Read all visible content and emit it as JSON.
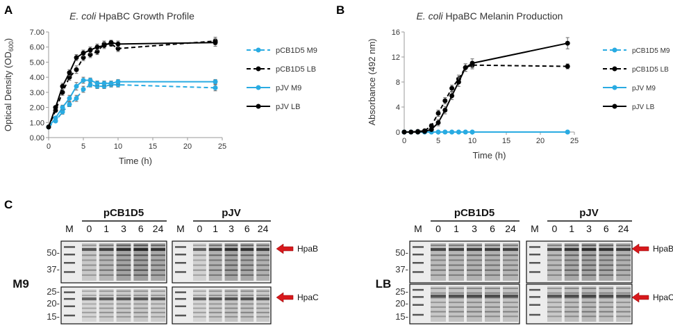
{
  "panels": {
    "A": {
      "letter": "A"
    },
    "B": {
      "letter": "B"
    },
    "C": {
      "letter": "C"
    }
  },
  "chart_data": [
    {
      "id": "A",
      "type": "line",
      "title_italic": "E. coli",
      "title_rest": " HpaBC Growth Profile",
      "xlabel": "Time (h)",
      "ylabel_main": "Optical Density (OD",
      "ylabel_sub": "600",
      "ylabel_end": ")",
      "xlim": [
        0,
        25
      ],
      "ylim": [
        0,
        7
      ],
      "xticks": [
        0,
        5,
        10,
        15,
        20,
        25
      ],
      "yticks": [
        0,
        1,
        2,
        3,
        4,
        5,
        6,
        7
      ],
      "ytick_labels": [
        "0.00",
        "1.00",
        "2.00",
        "3.00",
        "4.00",
        "5.00",
        "6.00",
        "7.00"
      ],
      "series": [
        {
          "name": "pCB1D5 M9",
          "color": "#29abe2",
          "dashed": true,
          "x": [
            0,
            1,
            2,
            3,
            4,
            5,
            6,
            7,
            8,
            9,
            10,
            24
          ],
          "y": [
            0.7,
            1.1,
            1.7,
            2.2,
            2.6,
            3.2,
            3.5,
            3.4,
            3.4,
            3.5,
            3.5,
            3.3
          ],
          "err": [
            0.05,
            0.1,
            0.15,
            0.15,
            0.2,
            0.2,
            0.15,
            0.15,
            0.15,
            0.15,
            0.15,
            0.2
          ]
        },
        {
          "name": "pCB1D5 LB",
          "color": "#000000",
          "dashed": true,
          "x": [
            0,
            1,
            2,
            3,
            4,
            5,
            6,
            7,
            8,
            9,
            10,
            24
          ],
          "y": [
            0.7,
            1.8,
            3.0,
            4.0,
            4.5,
            5.3,
            5.5,
            5.7,
            6.2,
            6.2,
            5.9,
            6.4
          ],
          "err": [
            0.05,
            0.1,
            0.2,
            0.2,
            0.25,
            0.2,
            0.2,
            0.2,
            0.2,
            0.15,
            0.2,
            0.25
          ]
        },
        {
          "name": "pJV M9",
          "color": "#29abe2",
          "dashed": false,
          "x": [
            0,
            1,
            2,
            3,
            4,
            5,
            6,
            7,
            8,
            9,
            10,
            24
          ],
          "y": [
            0.7,
            1.3,
            2.0,
            2.6,
            3.4,
            3.8,
            3.8,
            3.6,
            3.6,
            3.6,
            3.7,
            3.7
          ],
          "err": [
            0.05,
            0.1,
            0.15,
            0.2,
            0.25,
            0.2,
            0.15,
            0.15,
            0.15,
            0.15,
            0.15,
            0.15
          ]
        },
        {
          "name": "pJV LB",
          "color": "#000000",
          "dashed": false,
          "x": [
            0,
            1,
            2,
            3,
            4,
            5,
            6,
            7,
            8,
            9,
            10,
            24
          ],
          "y": [
            0.7,
            2.0,
            3.4,
            4.3,
            5.3,
            5.6,
            5.8,
            6.0,
            6.1,
            6.3,
            6.2,
            6.3
          ],
          "err": [
            0.05,
            0.1,
            0.2,
            0.2,
            0.2,
            0.2,
            0.2,
            0.2,
            0.2,
            0.15,
            0.2,
            0.25
          ]
        }
      ]
    },
    {
      "id": "B",
      "type": "line",
      "title_italic": "E. coli",
      "title_rest": " HpaBC Melanin Production",
      "xlabel": "Time (h)",
      "ylabel_main": "Absorbance (492 nm)",
      "ylabel_sub": "",
      "ylabel_end": "",
      "xlim": [
        0,
        25
      ],
      "ylim": [
        0,
        16
      ],
      "xticks": [
        0,
        5,
        10,
        15,
        20,
        25
      ],
      "yticks": [
        0,
        4,
        8,
        12,
        16
      ],
      "ytick_labels": [
        "0",
        "4",
        "8",
        "12",
        "16"
      ],
      "series": [
        {
          "name": "pCB1D5 M9",
          "color": "#29abe2",
          "dashed": true,
          "x": [
            0,
            1,
            2,
            3,
            4,
            5,
            6,
            7,
            8,
            9,
            10,
            24
          ],
          "y": [
            0,
            0,
            0,
            0,
            0,
            0,
            0,
            0,
            0,
            0,
            0,
            0
          ],
          "err": [
            0,
            0,
            0,
            0,
            0,
            0,
            0,
            0,
            0,
            0,
            0,
            0
          ]
        },
        {
          "name": "pCB1D5 LB",
          "color": "#000000",
          "dashed": true,
          "x": [
            0,
            1,
            2,
            3,
            4,
            5,
            6,
            7,
            8,
            9,
            10,
            24
          ],
          "y": [
            0,
            0,
            0.1,
            0.2,
            1.0,
            3.0,
            5.0,
            7.0,
            8.5,
            10.3,
            10.7,
            10.5
          ],
          "err": [
            0,
            0,
            0.1,
            0.2,
            0.3,
            0.5,
            0.5,
            0.5,
            0.6,
            0.6,
            0.6,
            0.4
          ]
        },
        {
          "name": "pJV M9",
          "color": "#29abe2",
          "dashed": false,
          "x": [
            0,
            1,
            2,
            3,
            4,
            5,
            6,
            7,
            8,
            9,
            10,
            24
          ],
          "y": [
            0,
            0,
            0,
            0,
            0,
            0,
            0,
            0,
            0,
            0,
            0,
            0
          ],
          "err": [
            0,
            0,
            0,
            0,
            0,
            0,
            0,
            0,
            0,
            0,
            0,
            0
          ]
        },
        {
          "name": "pJV LB",
          "color": "#000000",
          "dashed": false,
          "x": [
            0,
            1,
            2,
            3,
            4,
            5,
            6,
            7,
            8,
            9,
            10,
            24
          ],
          "y": [
            0,
            0,
            0,
            0.1,
            0.4,
            1.5,
            3.5,
            5.8,
            8.0,
            10.3,
            11.0,
            14.2
          ],
          "err": [
            0,
            0,
            0,
            0.1,
            0.2,
            0.5,
            0.6,
            0.6,
            0.7,
            0.6,
            0.7,
            0.9
          ]
        }
      ]
    }
  ],
  "gels": {
    "left": {
      "row_label": "M9",
      "mw_top": [
        "50-",
        "37-"
      ],
      "mw_bottom": [
        "25-",
        "20-",
        "15-"
      ],
      "groups": [
        {
          "name": "pCB1D5",
          "marker": "M",
          "lanes": [
            "0",
            "1",
            "3",
            "6",
            "24"
          ]
        },
        {
          "name": "pJV",
          "marker": "M",
          "lanes": [
            "0",
            "1",
            "3",
            "6",
            "24"
          ]
        }
      ],
      "arrow_top": "HpaB",
      "arrow_bottom": "HpaC",
      "intensity_top": [
        [
          0.35,
          0.55,
          0.75,
          0.8,
          0.7
        ],
        [
          0.25,
          0.6,
          0.75,
          0.7,
          0.6
        ]
      ],
      "intensity_bottom": [
        [
          0.2,
          0.3,
          0.35,
          0.35,
          0.3
        ],
        [
          0.2,
          0.35,
          0.4,
          0.4,
          0.35
        ]
      ]
    },
    "right": {
      "row_label": "LB",
      "mw_top": [
        "50-",
        "37-"
      ],
      "mw_bottom": [
        "25-",
        "20-",
        "15-"
      ],
      "groups": [
        {
          "name": "pCB1D5",
          "marker": "M",
          "lanes": [
            "0",
            "1",
            "3",
            "6",
            "24"
          ]
        },
        {
          "name": "pJV",
          "marker": "M",
          "lanes": [
            "0",
            "1",
            "3",
            "6",
            "24"
          ]
        }
      ],
      "arrow_top": "HpaB",
      "arrow_bottom": "HpaC",
      "intensity_top": [
        [
          0.5,
          0.55,
          0.6,
          0.6,
          0.55
        ],
        [
          0.5,
          0.7,
          0.75,
          0.7,
          0.6
        ]
      ],
      "intensity_bottom": [
        [
          0.35,
          0.4,
          0.45,
          0.45,
          0.4
        ],
        [
          0.35,
          0.45,
          0.5,
          0.45,
          0.4
        ]
      ]
    }
  },
  "colors": {
    "accent_blue": "#29abe2",
    "arrow_red": "#d7191c"
  }
}
